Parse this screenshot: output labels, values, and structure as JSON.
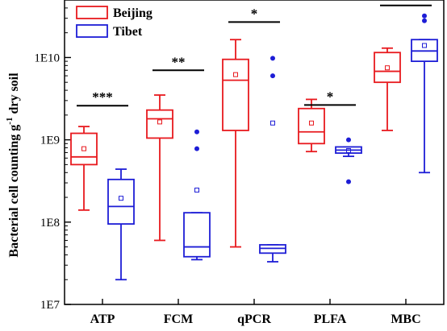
{
  "chart_data": {
    "type": "box",
    "ylabel_main": "Bacterial cell counting g",
    "ylabel_sup": "-1",
    "ylabel_tail": " dry soil",
    "yscale": "log",
    "ylim": [
      10000000.0,
      50000000000.0
    ],
    "yticks": [
      {
        "value": 10000000.0,
        "label": "1E7"
      },
      {
        "value": 100000000.0,
        "label": "1E8"
      },
      {
        "value": 1000000000.0,
        "label": "1E9"
      },
      {
        "value": 10000000000.0,
        "label": "1E10"
      }
    ],
    "categories": [
      "ATP",
      "FCM",
      "qPCR",
      "PLFA",
      "MBC"
    ],
    "series": [
      {
        "name": "Beijing",
        "color": "#e8191e",
        "boxes": [
          {
            "whisker_low": 140000000.0,
            "q1": 500000000.0,
            "median": 620000000.0,
            "q3": 1200000000.0,
            "whisker_high": 1450000000.0,
            "mean": 780000000.0,
            "outliers": []
          },
          {
            "whisker_low": 60000000.0,
            "q1": 1050000000.0,
            "median": 1800000000.0,
            "q3": 2300000000.0,
            "whisker_high": 3500000000.0,
            "mean": 1650000000.0,
            "outliers": []
          },
          {
            "whisker_low": 50000000.0,
            "q1": 1300000000.0,
            "median": 5300000000.0,
            "q3": 9500000000.0,
            "whisker_high": 16500000000.0,
            "mean": 6200000000.0,
            "outliers": []
          },
          {
            "whisker_low": 720000000.0,
            "q1": 900000000.0,
            "median": 1250000000.0,
            "q3": 2400000000.0,
            "whisker_high": 3100000000.0,
            "mean": 1600000000.0,
            "outliers": []
          },
          {
            "whisker_low": 1300000000.0,
            "q1": 5000000000.0,
            "median": 6800000000.0,
            "q3": 11500000000.0,
            "whisker_high": 13000000000.0,
            "mean": 7500000000.0,
            "outliers": []
          }
        ]
      },
      {
        "name": "Tibet",
        "color": "#1d1dd6",
        "boxes": [
          {
            "whisker_low": 20000000.0,
            "q1": 95000000.0,
            "median": 155000000.0,
            "q3": 330000000.0,
            "whisker_high": 440000000.0,
            "mean": 195000000.0,
            "outliers": []
          },
          {
            "whisker_low": 35000000.0,
            "q1": 38000000.0,
            "median": 50000000.0,
            "q3": 130000000.0,
            "whisker_high": 130000000.0,
            "mean": 245000000.0,
            "outliers": [
              1250000000.0,
              780000000.0
            ]
          },
          {
            "whisker_low": 33000000.0,
            "q1": 42000000.0,
            "median": 48000000.0,
            "q3": 53000000.0,
            "whisker_high": 53000000.0,
            "mean": 1600000000.0,
            "outliers": [
              9800000000.0,
              6000000000.0
            ]
          },
          {
            "whisker_low": 630000000.0,
            "q1": 690000000.0,
            "median": 750000000.0,
            "q3": 820000000.0,
            "whisker_high": 820000000.0,
            "mean": 740000000.0,
            "outliers": [
              1000000000.0,
              310000000.0
            ]
          },
          {
            "whisker_low": 400000000.0,
            "q1": 9000000000.0,
            "median": 12000000000.0,
            "q3": 16500000000.0,
            "whisker_high": 16500000000.0,
            "mean": 14000000000.0,
            "outliers": [
              32000000000.0,
              28000000000.0
            ]
          }
        ]
      }
    ],
    "significance": [
      "***",
      "**",
      "*",
      "*",
      "*"
    ],
    "significance_line_value": [
      2600000000.0,
      7000000000.0,
      27000000000.0,
      2650000000.0,
      43000000000.0
    ],
    "legend": {
      "position": "top-left"
    },
    "grid": false
  }
}
